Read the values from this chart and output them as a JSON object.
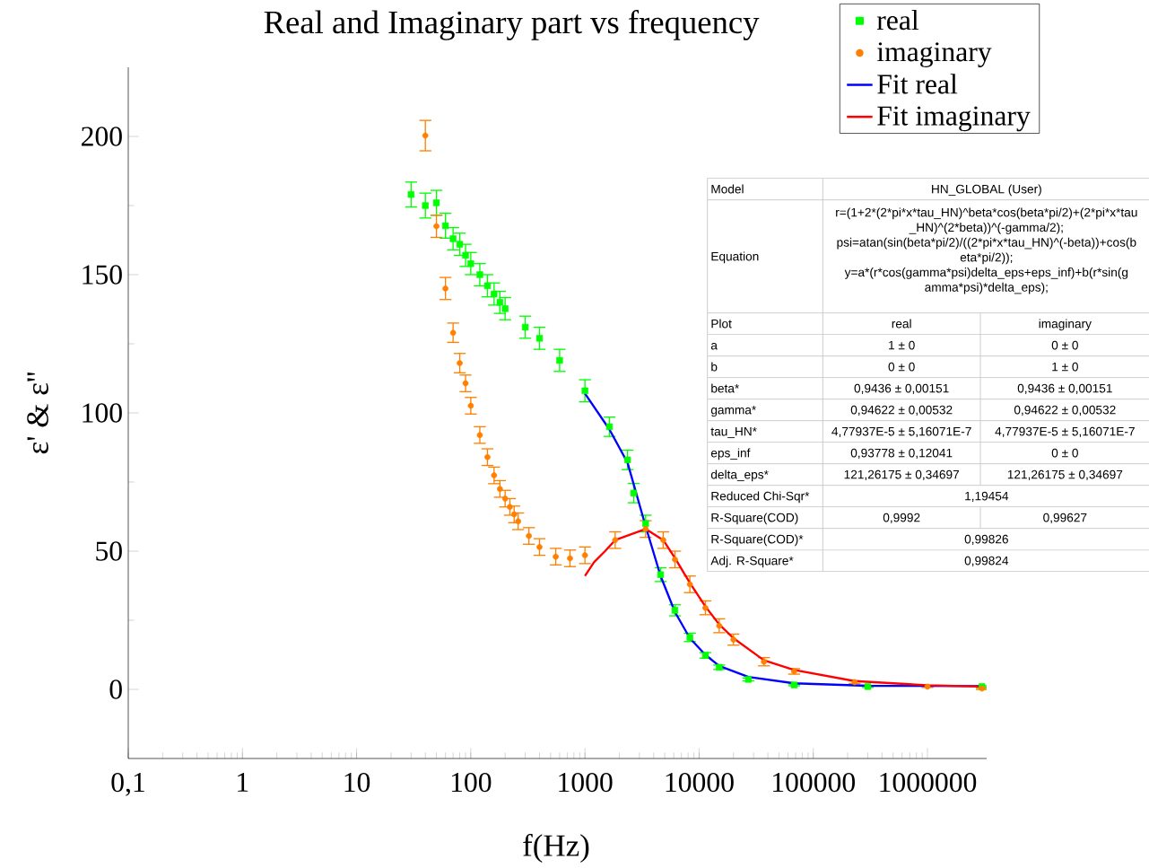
{
  "chart_data": {
    "type": "scatter",
    "title": "Real and Imaginary part vs frequency",
    "xlabel": "f(Hz)",
    "ylabel": "ε' & ε''",
    "log": "x",
    "xlim": [
      0.1,
      3300000
    ],
    "ylim": [
      -25,
      225
    ],
    "xticks": [
      {
        "value": 0.1,
        "label": "0,1"
      },
      1,
      10,
      100,
      1000,
      10000,
      100000,
      1000000
    ],
    "yticks": [
      0,
      50,
      100,
      150,
      200
    ],
    "legend": "top right",
    "series": [
      {
        "name": "real",
        "marker": "square",
        "color": "#00ff00",
        "x": [
          30,
          40,
          50,
          60,
          70,
          80,
          90,
          100,
          120,
          140,
          160,
          180,
          200,
          300,
          400,
          600,
          1000,
          1640,
          2360,
          2670,
          3400,
          4600,
          6140,
          8300,
          11350,
          15000,
          27000,
          68000,
          300000,
          3000000
        ],
        "values": [
          179,
          175,
          176,
          167.7,
          163,
          161,
          157,
          154,
          150,
          146,
          143,
          140,
          137.7,
          131,
          127,
          119,
          108,
          95,
          83,
          71,
          60,
          41.5,
          28.6,
          18.8,
          12.3,
          8,
          3.6,
          1.6,
          1,
          1
        ],
        "errors": [
          4.5,
          4.5,
          4.5,
          4.5,
          4,
          4,
          4,
          4,
          4,
          4,
          4,
          4,
          4,
          4,
          4,
          4,
          4,
          3.5,
          3.5,
          3.5,
          3,
          2.5,
          2,
          1.5,
          1,
          0.8,
          0.5,
          0.3,
          0.3,
          0.3
        ]
      },
      {
        "name": "imaginary",
        "marker": "circle",
        "color": "#ff8000",
        "x": [
          40,
          50,
          60,
          70,
          80,
          90,
          100,
          120,
          140,
          160,
          180,
          200,
          220,
          240,
          260,
          323,
          400,
          555,
          740,
          1000,
          1840,
          3400,
          4850,
          6140,
          8300,
          11350,
          15000,
          20000,
          37000,
          68000,
          230000,
          1000000,
          3000000
        ],
        "values": [
          200.3,
          167.5,
          145,
          129,
          118,
          110.7,
          102.6,
          92,
          84,
          77.4,
          72.5,
          69,
          66,
          63.3,
          60.8,
          55.5,
          51.5,
          48,
          47.4,
          48.5,
          54,
          58,
          54,
          47,
          38,
          29.5,
          23,
          18,
          10,
          6.5,
          2.6,
          1,
          0.3
        ],
        "errors": [
          5.5,
          4,
          4,
          3.5,
          3.5,
          3,
          3,
          3,
          3,
          3,
          3,
          3,
          3,
          3,
          3,
          3,
          3,
          3,
          3,
          3,
          3,
          3,
          3,
          3,
          3,
          2.5,
          2.5,
          2,
          1.5,
          1,
          0.5,
          0.3,
          0.3
        ]
      },
      {
        "name": "Fit real",
        "type": "line",
        "marker": "none",
        "color": "#0000ff",
        "x": [
          1000,
          1640,
          2360,
          3400,
          4600,
          6140,
          8300,
          11350,
          15000,
          27000,
          68000,
          300000,
          3000000
        ],
        "values": [
          107,
          94,
          82,
          59,
          41,
          28,
          18.5,
          12.5,
          8.5,
          4.5,
          2.2,
          1.3,
          1.2
        ]
      },
      {
        "name": "Fit imaginary",
        "type": "line",
        "marker": "none",
        "color": "#ff0000",
        "x": [
          1000,
          1200,
          1500,
          1840,
          3400,
          4850,
          6140,
          8300,
          11350,
          15000,
          20000,
          37000,
          68000,
          230000,
          1000000,
          3000000
        ],
        "values": [
          41,
          46,
          50,
          54,
          58,
          54,
          47.5,
          38.5,
          30,
          23.5,
          18.5,
          10.5,
          7,
          3,
          1.5,
          1
        ]
      }
    ],
    "annotations": [
      "Model",
      "HN_GLOBAL (User)",
      "Equation",
      "r=(1+2*(2*pi*x*tau_HN)^beta*cos(beta*pi/2)+(2*pi*x*tau",
      "_HN)^(2*beta))^(-gamma/2);",
      "psi=atan(sin(beta*pi/2)/((2*pi*x*tau_HN)^(-beta))+cos(b",
      "eta*pi/2));",
      "y=a*(r*cos(gamma*psi)*delta_eps+eps_inf)+b*(r*sin(g",
      "amma*psi)*delta_eps);",
      "Plot",
      "real",
      "imaginary",
      "a",
      "1 ± 0",
      "0 ± 0",
      "b",
      "0 ± 0",
      "1 ± 0",
      "beta*",
      "0,9436 ± 0,00151",
      "0,9436 ± 0,00151",
      "gamma*",
      "0,94622 ± 0,00532",
      "0,94622 ± 0,00532",
      "tau_HN*",
      "4,77937E-5 ± 5,16071E-7",
      "4,77937E-5 ± 5,16071E-7",
      "eps_inf",
      "0,93778 ± 0,12041",
      "0 ± 0",
      "delta_eps*",
      "121,26175 ± 0,34697",
      "121,26175 ± 0,34697",
      "Reduced Chi-Sqr*",
      "1,19454",
      "R-Square(COD)",
      "0,9992",
      "0,99627",
      "R-Square(COD)*",
      "0,99826",
      "Adj. R-Square*",
      "0,99824"
    ]
  }
}
